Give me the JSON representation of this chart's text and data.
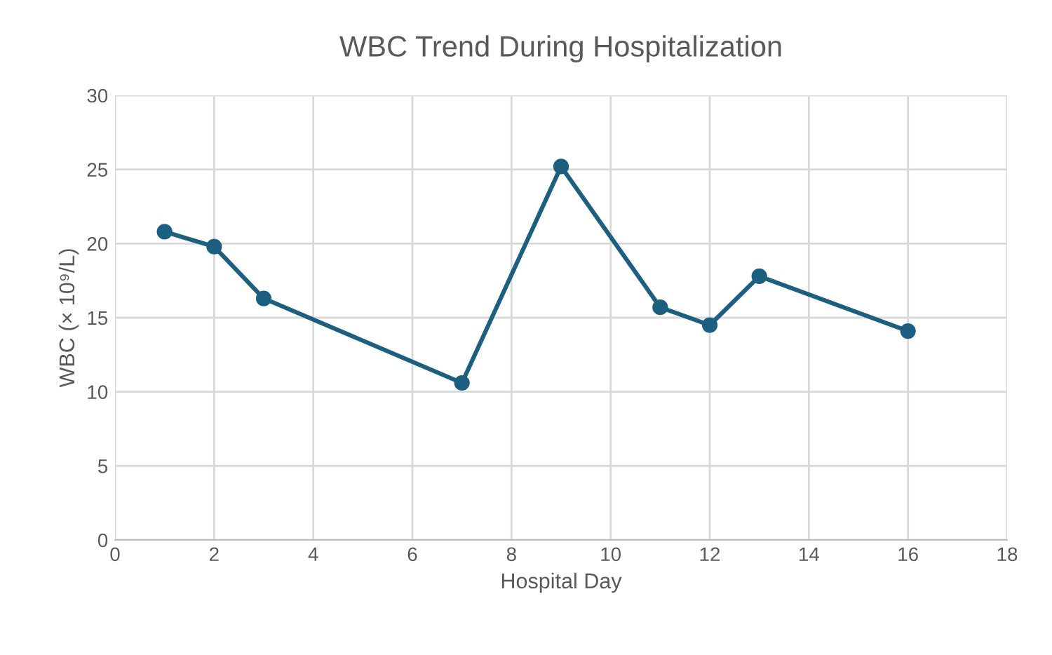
{
  "chart_data": {
    "type": "line",
    "title": "WBC Trend During Hospitalization",
    "xlabel": "Hospital Day",
    "ylabel": "WBC (× 10⁹/L)",
    "x": [
      1,
      2,
      3,
      7,
      9,
      11,
      12,
      13,
      16
    ],
    "series": [
      {
        "color": "#1d5f80",
        "values": [
          20.8,
          19.8,
          16.3,
          10.6,
          25.2,
          15.7,
          14.5,
          17.8,
          14.1
        ]
      }
    ],
    "xlim": [
      0,
      18
    ],
    "xticks": [
      0,
      2,
      4,
      6,
      8,
      10,
      12,
      14,
      16,
      18
    ],
    "ylim": [
      0,
      30
    ],
    "yticks": [
      0,
      5,
      10,
      15,
      20,
      25,
      30
    ],
    "grid": true,
    "marker": "circle",
    "line_style": "solid"
  }
}
